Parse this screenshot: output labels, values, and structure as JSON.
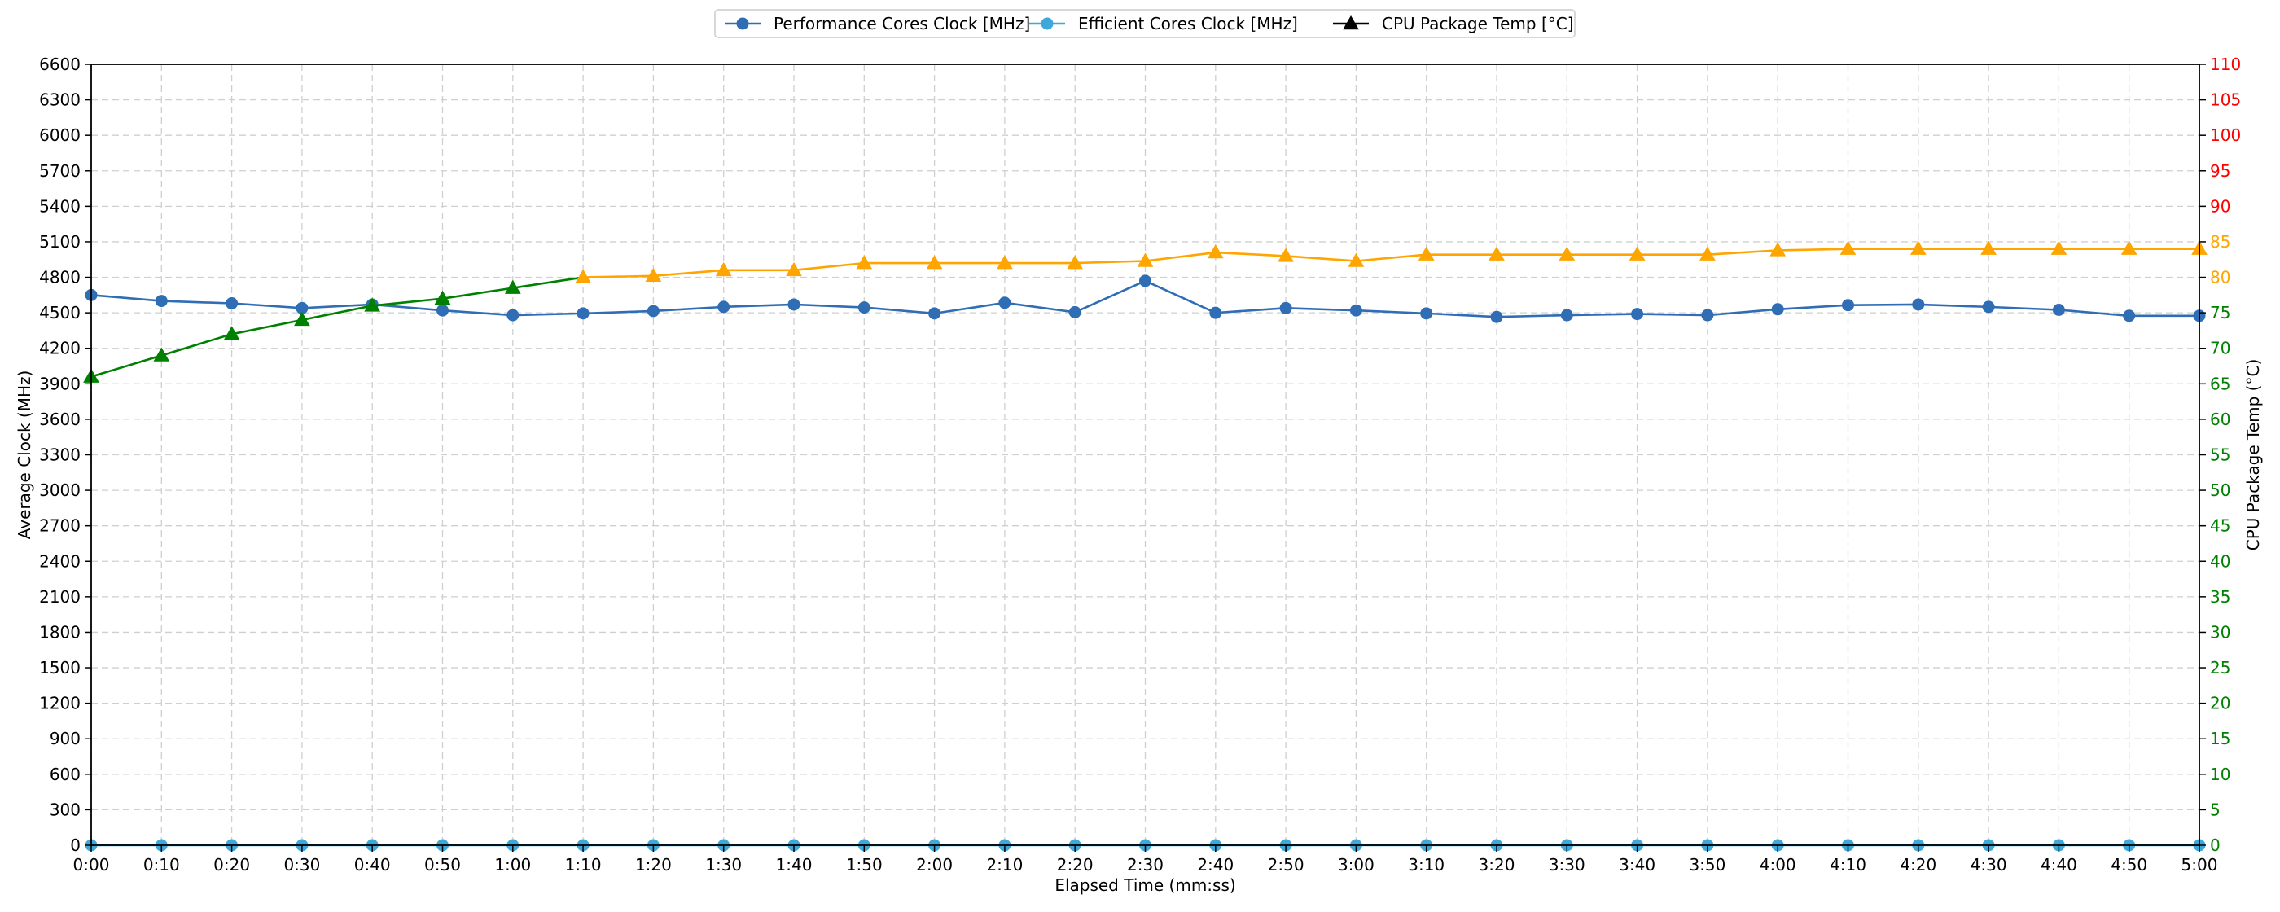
{
  "chart_data": {
    "type": "line",
    "x_categories": [
      "0:00",
      "0:10",
      "0:20",
      "0:30",
      "0:40",
      "0:50",
      "1:00",
      "1:10",
      "1:20",
      "1:30",
      "1:40",
      "1:50",
      "2:00",
      "2:10",
      "2:20",
      "2:30",
      "2:40",
      "2:50",
      "3:00",
      "3:10",
      "3:20",
      "3:30",
      "3:40",
      "3:50",
      "4:00",
      "4:10",
      "4:20",
      "4:30",
      "4:40",
      "4:50",
      "5:00"
    ],
    "xlabel": "Elapsed Time (mm:ss)",
    "ylabel_left": "Average Clock (MHz)",
    "ylabel_right": "CPU Package Temp (°C)",
    "ylim_left": [
      0,
      6600
    ],
    "ylim_right": [
      0,
      110
    ],
    "yticks_left": [
      0,
      300,
      600,
      900,
      1200,
      1500,
      1800,
      2100,
      2400,
      2700,
      3000,
      3300,
      3600,
      3900,
      4200,
      4500,
      4800,
      5100,
      5400,
      5700,
      6000,
      6300,
      6600
    ],
    "yticks_right": [
      0,
      5,
      10,
      15,
      20,
      25,
      30,
      35,
      40,
      45,
      50,
      55,
      60,
      65,
      70,
      75,
      80,
      85,
      90,
      95,
      100,
      105,
      110
    ],
    "right_tick_color_bands": [
      {
        "min": 0,
        "max": 75,
        "color": "#008000"
      },
      {
        "min": 80,
        "max": 85,
        "color": "#FFA500"
      },
      {
        "min": 90,
        "max": 110,
        "color": "#FF0000"
      }
    ],
    "temp_threshold": 80,
    "temp_colors": {
      "below": "#008000",
      "at_or_above": "#FFA500"
    },
    "grid": true,
    "legend_position": "top-center",
    "legend": [
      {
        "label": "Performance Cores Clock [MHz]",
        "color": "#2F6DB5",
        "marker": "circle"
      },
      {
        "label": "Efficient Cores Clock [MHz]",
        "color": "#3EA8DA",
        "marker": "circle"
      },
      {
        "label": "CPU Package Temp [°C]",
        "color": "#000000",
        "marker": "triangle"
      }
    ],
    "series": [
      {
        "name": "Performance Cores Clock [MHz]",
        "axis": "left",
        "color": "#2F6DB5",
        "marker": "circle",
        "values": [
          4650,
          4600,
          4580,
          4540,
          4570,
          4520,
          4480,
          4495,
          4515,
          4550,
          4570,
          4545,
          4495,
          4585,
          4505,
          4770,
          4500,
          4540,
          4520,
          4495,
          4465,
          4480,
          4490,
          4480,
          4530,
          4565,
          4570,
          4550,
          4525,
          4475,
          4475
        ]
      },
      {
        "name": "Efficient Cores Clock [MHz]",
        "axis": "right_hidden",
        "color": "#3EA8DA",
        "marker": "circle",
        "values": [
          0,
          0,
          0,
          0,
          0,
          0,
          0,
          0,
          0,
          0,
          0,
          0,
          0,
          0,
          0,
          0,
          0,
          0,
          0,
          0,
          0,
          0,
          0,
          0,
          0,
          0,
          0,
          0,
          0,
          0,
          0
        ]
      },
      {
        "name": "CPU Package Temp [°C]",
        "axis": "right",
        "marker": "triangle",
        "values": [
          66,
          69,
          72,
          74,
          76,
          77,
          78.5,
          80,
          80.2,
          81,
          81,
          82,
          82,
          82,
          82,
          82.3,
          83.5,
          83,
          82.3,
          83.2,
          83.2,
          83.2,
          83.2,
          83.2,
          83.8,
          84,
          84,
          84,
          84,
          84,
          84
        ]
      }
    ]
  }
}
